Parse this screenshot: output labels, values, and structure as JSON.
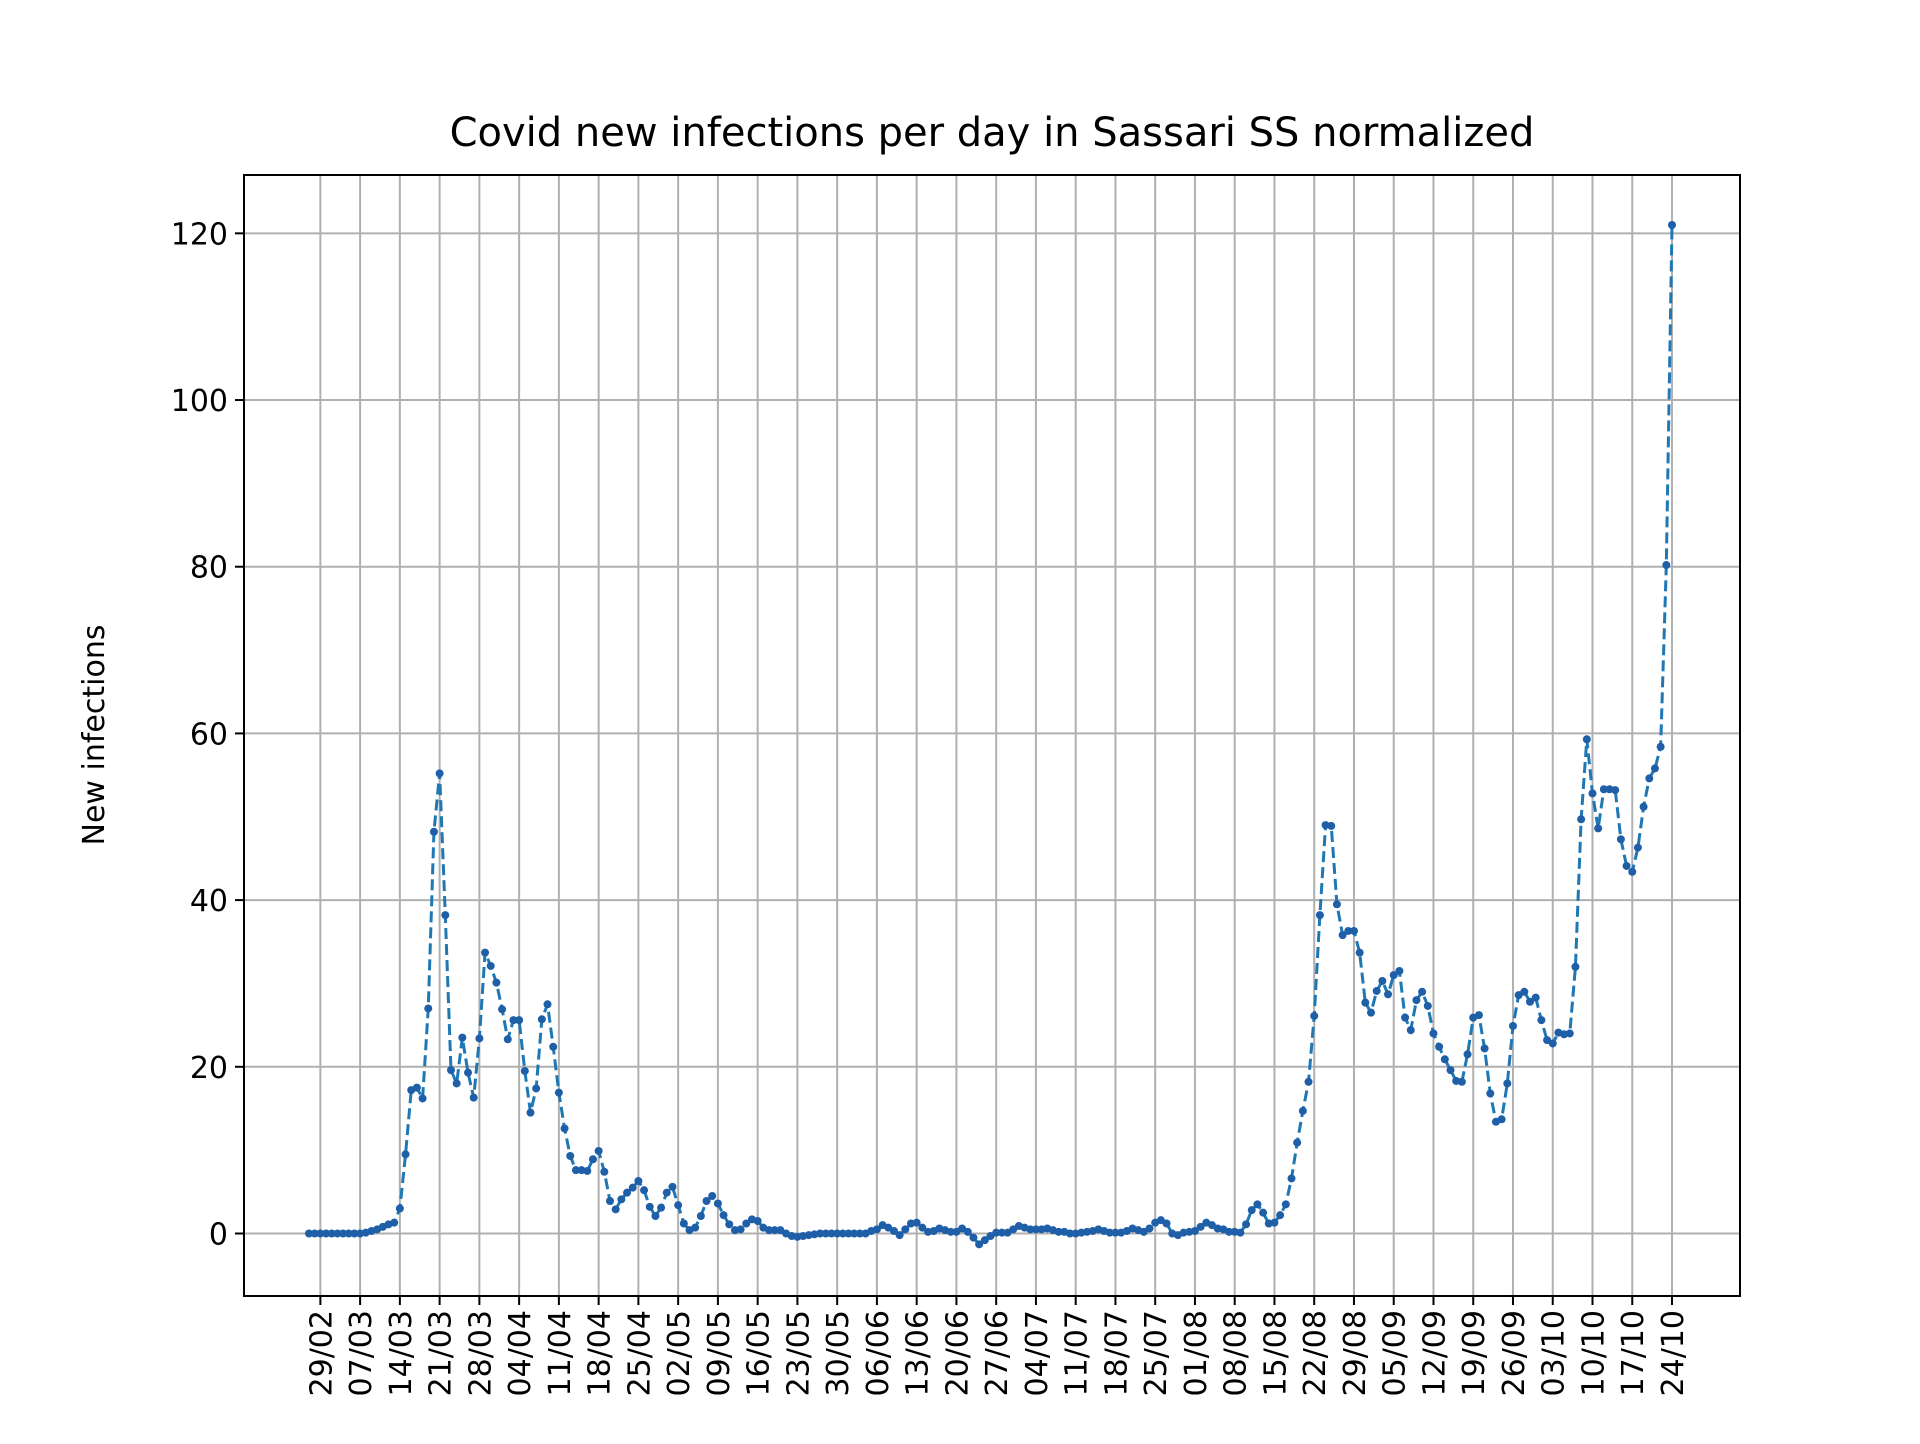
{
  "chart_data": {
    "type": "line",
    "title": "Covid new infections per day in Sassari SS normalized",
    "xlabel": "",
    "ylabel": "New infections",
    "ylim": [
      -7.5,
      127
    ],
    "yticks": [
      0,
      20,
      40,
      60,
      80,
      100,
      120
    ],
    "ytick_labels": [
      "0",
      "20",
      "40",
      "60",
      "80",
      "100",
      "120"
    ],
    "x_start_date": "2020-02-27",
    "xtick_labels": [
      "29/02",
      "07/03",
      "14/03",
      "21/03",
      "28/03",
      "04/04",
      "11/04",
      "18/04",
      "25/04",
      "02/05",
      "09/05",
      "16/05",
      "23/05",
      "30/05",
      "06/06",
      "13/06",
      "20/06",
      "27/06",
      "04/07",
      "11/07",
      "18/07",
      "25/07",
      "01/08",
      "08/08",
      "15/08",
      "22/08",
      "29/08",
      "05/09",
      "12/09",
      "19/09",
      "26/09",
      "03/10",
      "10/10",
      "17/10",
      "24/10"
    ],
    "grid": true,
    "line_color": "#1f77b4",
    "marker_color": "#1f5fa8",
    "series": [
      {
        "name": "",
        "values": [
          0,
          0,
          0,
          0,
          0,
          0,
          0,
          0,
          0,
          0,
          0.1,
          0.3,
          0.5,
          0.8,
          1.1,
          1.3,
          3,
          9.5,
          17.2,
          17.5,
          16.2,
          27,
          48.2,
          55.2,
          38.2,
          19.6,
          18,
          23.5,
          19.3,
          16.3,
          23.4,
          33.7,
          32.1,
          30.1,
          26.9,
          23.3,
          25.6,
          25.6,
          19.5,
          14.5,
          17.4,
          25.7,
          27.5,
          22.4,
          16.9,
          12.6,
          9.3,
          7.6,
          7.6,
          7.5,
          8.9,
          9.9,
          7.4,
          3.9,
          2.9,
          4.1,
          4.9,
          5.5,
          6.3,
          5.2,
          3.2,
          2.1,
          3.1,
          4.9,
          5.6,
          3.4,
          1.2,
          0.4,
          0.7,
          2.1,
          3.9,
          4.5,
          3.6,
          2.2,
          1.1,
          0.4,
          0.5,
          1.2,
          1.7,
          1.5,
          0.7,
          0.4,
          0.4,
          0.4,
          0,
          -0.3,
          -0.4,
          -0.3,
          -0.2,
          -0.1,
          0,
          0,
          0,
          0,
          0,
          0,
          0,
          0,
          0,
          0.3,
          0.5,
          1,
          0.7,
          0.3,
          -0.2,
          0.5,
          1.2,
          1.3,
          0.7,
          0.2,
          0.3,
          0.6,
          0.4,
          0.2,
          0.2,
          0.6,
          0.2,
          -0.5,
          -1.3,
          -0.8,
          -0.3,
          0.1,
          0.1,
          0.1,
          0.5,
          0.9,
          0.7,
          0.5,
          0.5,
          0.5,
          0.6,
          0.4,
          0.2,
          0.2,
          0,
          0,
          0.1,
          0.2,
          0.3,
          0.5,
          0.3,
          0.1,
          0.1,
          0.1,
          0.3,
          0.6,
          0.4,
          0.2,
          0.6,
          1.3,
          1.6,
          1.2,
          0,
          -0.2,
          0.1,
          0.2,
          0.3,
          0.8,
          1.3,
          1,
          0.6,
          0.5,
          0.2,
          0.2,
          0.1,
          1.1,
          2.8,
          3.5,
          2.5,
          1.2,
          1.3,
          2.2,
          3.5,
          6.6,
          10.9,
          14.7,
          18.2,
          26.1,
          38.2,
          49,
          48.9,
          39.5,
          35.8,
          36.3,
          36.3,
          33.7,
          27.7,
          26.5,
          29.1,
          30.3,
          28.7,
          31,
          31.5,
          25.9,
          24.4,
          28,
          29,
          27.3,
          24,
          22.4,
          20.9,
          19.6,
          18.3,
          18.2,
          21.5,
          25.9,
          26.2,
          22.2,
          16.8,
          13.4,
          13.7,
          18,
          24.9,
          28.6,
          29,
          27.8,
          28.3,
          25.6,
          23.2,
          22.8,
          24.1,
          23.9,
          24,
          32,
          49.7,
          59.3,
          52.8,
          48.6,
          53.3,
          53.3,
          53.2,
          47.3,
          44.1,
          43.4,
          46.3,
          51.2,
          54.6,
          55.8,
          58.4,
          80.2,
          121
        ]
      }
    ]
  }
}
